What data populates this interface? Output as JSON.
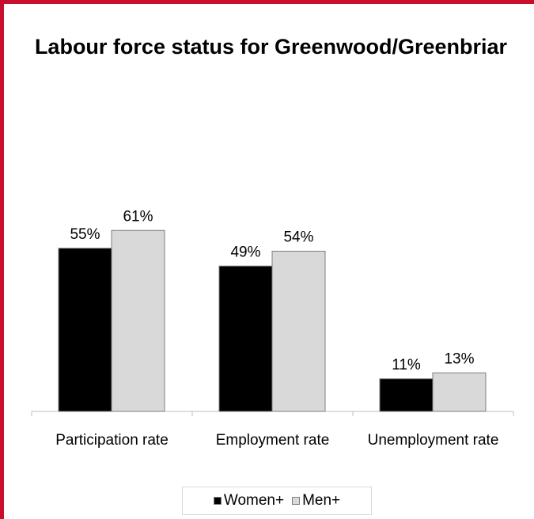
{
  "chart_data": {
    "type": "bar",
    "title": "Labour force status for Greenwood/Greenbriar",
    "categories": [
      "Participation rate",
      "Employment rate",
      "Unemployment rate"
    ],
    "series": [
      {
        "name": "Women+",
        "values": [
          55,
          49,
          11
        ],
        "labels": [
          "55%",
          "49%",
          "11%"
        ],
        "color": "#000000"
      },
      {
        "name": "Men+",
        "values": [
          61,
          54,
          13
        ],
        "labels": [
          "61%",
          "54%",
          "13%"
        ],
        "color": "#d9d9d9"
      }
    ],
    "ylim": [
      0,
      100
    ],
    "unit": "%",
    "grid": false,
    "legend_position": "bottom"
  },
  "colors": {
    "border": "#c8102e",
    "bar_outline": "#7f7f7f",
    "axis": "#bfbfbf"
  }
}
